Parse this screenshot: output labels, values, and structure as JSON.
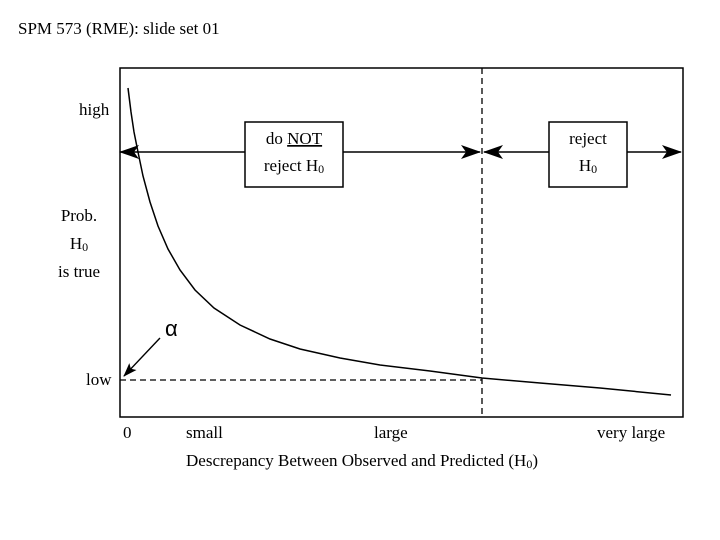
{
  "header": {
    "title": "SPM 573 (RME): slide set 01"
  },
  "diagram": {
    "y_axis": {
      "high_label": "high",
      "low_label": "low",
      "title_line1": "Prob.",
      "title_line2_main": "H",
      "title_line2_sub": "0",
      "title_line3": "is true"
    },
    "x_axis": {
      "ticks": [
        "0",
        "small",
        "large",
        "very large"
      ],
      "title_main": "Descrepancy Between Observed and Predicted (H",
      "title_sub": "0",
      "title_end": ")"
    },
    "boxes": {
      "accept": {
        "line1_prefix": "do ",
        "line1_emph": "NOT",
        "line2_main": "reject H",
        "line2_sub": "0"
      },
      "reject": {
        "line1": "reject",
        "line2_main": "H",
        "line2_sub": "0"
      }
    },
    "alpha_symbol": "α"
  }
}
